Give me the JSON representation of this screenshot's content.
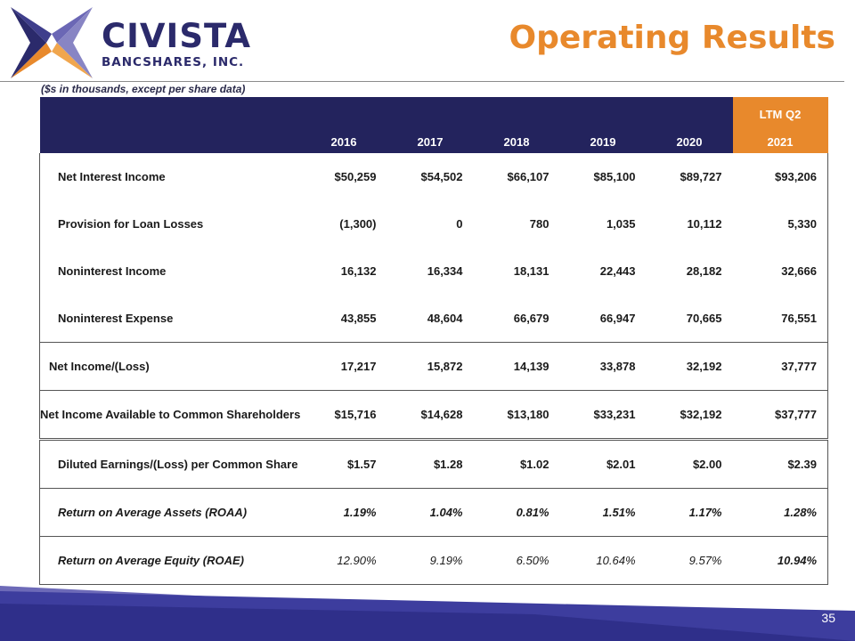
{
  "logo": {
    "name": "CIVISTA",
    "sub": "BANCSHARES, INC."
  },
  "title": "Operating Results",
  "note": "($s in thousands, except per share data)",
  "table": {
    "ltm_label": "LTM Q2",
    "years": [
      "2016",
      "2017",
      "2018",
      "2019",
      "2020",
      "2021"
    ],
    "rows": [
      {
        "label": "Net Interest Income",
        "values": [
          "$50,259",
          "$54,502",
          "$66,107",
          "$85,100",
          "$89,727",
          "$93,206"
        ]
      },
      {
        "label": "Provision for Loan Losses",
        "values": [
          "(1,300)",
          "0",
          "780",
          "1,035",
          "10,112",
          "5,330"
        ]
      },
      {
        "label": "Noninterest Income",
        "values": [
          "16,132",
          "16,334",
          "18,131",
          "22,443",
          "28,182",
          "32,666"
        ]
      },
      {
        "label": "Noninterest Expense",
        "values": [
          "43,855",
          "48,604",
          "66,679",
          "66,947",
          "70,665",
          "76,551"
        ]
      },
      {
        "label": "Net Income/(Loss)",
        "values": [
          "17,217",
          "15,872",
          "14,139",
          "33,878",
          "32,192",
          "37,777"
        ]
      },
      {
        "label": "Net Income Available to Common Shareholders",
        "values": [
          "$15,716",
          "$14,628",
          "$13,180",
          "$33,231",
          "$32,192",
          "$37,777"
        ]
      },
      {
        "label": "Diluted Earnings/(Loss) per Common Share",
        "values": [
          "$1.57",
          "$1.28",
          "$1.02",
          "$2.01",
          "$2.00",
          "$2.39"
        ]
      },
      {
        "label": "Return on Average Assets (ROAA)",
        "values": [
          "1.19%",
          "1.04%",
          "0.81%",
          "1.51%",
          "1.17%",
          "1.28%"
        ]
      },
      {
        "label": "Return on Average Equity (ROAE)",
        "values": [
          "12.90%",
          "9.19%",
          "6.50%",
          "10.64%",
          "9.57%",
          "10.94%"
        ]
      }
    ]
  },
  "page_number": "35",
  "colors": {
    "navy": "#23235d",
    "orange": "#e8892c",
    "footer_blue": "#3d3d9e"
  }
}
